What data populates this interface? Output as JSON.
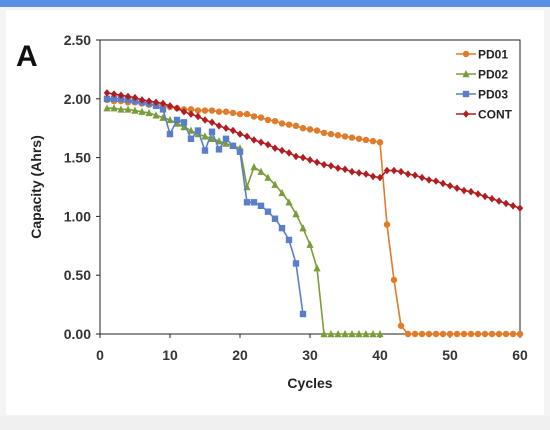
{
  "panel_label": "A",
  "chart_data": {
    "type": "line",
    "title": "",
    "xlabel": "Cycles",
    "ylabel": "Capacity (Ahrs)",
    "xlim": [
      0,
      60
    ],
    "ylim": [
      0,
      2.5
    ],
    "xticks": [
      "0",
      "10",
      "20",
      "30",
      "40",
      "50",
      "60"
    ],
    "yticks": [
      "0.00",
      "0.50",
      "1.00",
      "1.50",
      "2.00",
      "2.50"
    ],
    "grid": false,
    "legend_position": "top-right",
    "series": [
      {
        "name": "PD01",
        "color": "#e07b2a",
        "marker": "circle",
        "x": [
          1,
          2,
          3,
          4,
          5,
          6,
          7,
          8,
          9,
          10,
          11,
          12,
          13,
          14,
          15,
          16,
          17,
          18,
          19,
          20,
          21,
          22,
          23,
          24,
          25,
          26,
          27,
          28,
          29,
          30,
          31,
          32,
          33,
          34,
          35,
          36,
          37,
          38,
          39,
          40,
          41,
          42,
          43,
          44,
          45,
          46,
          47,
          48,
          49,
          50,
          51,
          52,
          53,
          54,
          55,
          56,
          57,
          58,
          59,
          60
        ],
        "y": [
          1.99,
          1.98,
          1.98,
          1.97,
          1.97,
          1.96,
          1.95,
          1.95,
          1.94,
          1.93,
          1.92,
          1.91,
          1.91,
          1.9,
          1.9,
          1.9,
          1.89,
          1.89,
          1.88,
          1.87,
          1.87,
          1.85,
          1.84,
          1.82,
          1.81,
          1.79,
          1.78,
          1.77,
          1.75,
          1.74,
          1.73,
          1.71,
          1.7,
          1.69,
          1.68,
          1.67,
          1.66,
          1.65,
          1.64,
          1.63,
          0.93,
          0.46,
          0.07,
          0,
          0,
          0,
          0,
          0,
          0,
          0,
          0,
          0,
          0,
          0,
          0,
          0,
          0,
          0,
          0,
          0
        ]
      },
      {
        "name": "PD02",
        "color": "#7a9c3a",
        "marker": "triangle",
        "x": [
          1,
          2,
          3,
          4,
          5,
          6,
          7,
          8,
          9,
          10,
          11,
          12,
          13,
          14,
          15,
          16,
          17,
          18,
          19,
          20,
          21,
          22,
          23,
          24,
          25,
          26,
          27,
          28,
          29,
          30,
          31,
          32,
          33,
          34,
          35,
          36,
          37,
          38,
          39,
          40
        ],
        "y": [
          1.92,
          1.92,
          1.91,
          1.91,
          1.9,
          1.89,
          1.88,
          1.86,
          1.84,
          1.82,
          1.79,
          1.76,
          1.73,
          1.7,
          1.68,
          1.66,
          1.64,
          1.62,
          1.6,
          1.58,
          1.25,
          1.42,
          1.38,
          1.33,
          1.27,
          1.2,
          1.12,
          1.02,
          0.9,
          0.76,
          0.56,
          0,
          0,
          0,
          0,
          0,
          0,
          0,
          0,
          0
        ]
      },
      {
        "name": "PD03",
        "color": "#5a7fc8",
        "marker": "square",
        "x": [
          1,
          2,
          3,
          4,
          5,
          6,
          7,
          8,
          9,
          10,
          11,
          12,
          13,
          14,
          15,
          16,
          17,
          18,
          19,
          20,
          21,
          22,
          23,
          24,
          25,
          26,
          27,
          28,
          29
        ],
        "y": [
          2.0,
          2.0,
          2.0,
          1.99,
          1.98,
          1.97,
          1.96,
          1.94,
          1.91,
          1.7,
          1.82,
          1.8,
          1.66,
          1.73,
          1.56,
          1.72,
          1.57,
          1.66,
          1.6,
          1.55,
          1.12,
          1.12,
          1.09,
          1.04,
          0.98,
          0.9,
          0.8,
          0.6,
          0.17
        ]
      },
      {
        "name": "CONT",
        "color": "#b01e22",
        "marker": "diamond",
        "x": [
          1,
          2,
          3,
          4,
          5,
          6,
          7,
          8,
          9,
          10,
          11,
          12,
          13,
          14,
          15,
          16,
          17,
          18,
          19,
          20,
          21,
          22,
          23,
          24,
          25,
          26,
          27,
          28,
          29,
          30,
          31,
          32,
          33,
          34,
          35,
          36,
          37,
          38,
          39,
          40,
          41,
          42,
          43,
          44,
          45,
          46,
          47,
          48,
          49,
          50,
          51,
          52,
          53,
          54,
          55,
          56,
          57,
          58,
          59,
          60
        ],
        "y": [
          2.05,
          2.04,
          2.03,
          2.02,
          2.01,
          1.99,
          1.98,
          1.97,
          1.96,
          1.94,
          1.92,
          1.89,
          1.87,
          1.85,
          1.82,
          1.8,
          1.77,
          1.75,
          1.73,
          1.7,
          1.68,
          1.65,
          1.63,
          1.61,
          1.58,
          1.56,
          1.54,
          1.51,
          1.5,
          1.48,
          1.46,
          1.44,
          1.43,
          1.41,
          1.4,
          1.38,
          1.37,
          1.36,
          1.34,
          1.33,
          1.39,
          1.39,
          1.38,
          1.36,
          1.35,
          1.33,
          1.31,
          1.3,
          1.28,
          1.26,
          1.24,
          1.22,
          1.21,
          1.19,
          1.17,
          1.15,
          1.13,
          1.11,
          1.09,
          1.07
        ]
      }
    ]
  }
}
